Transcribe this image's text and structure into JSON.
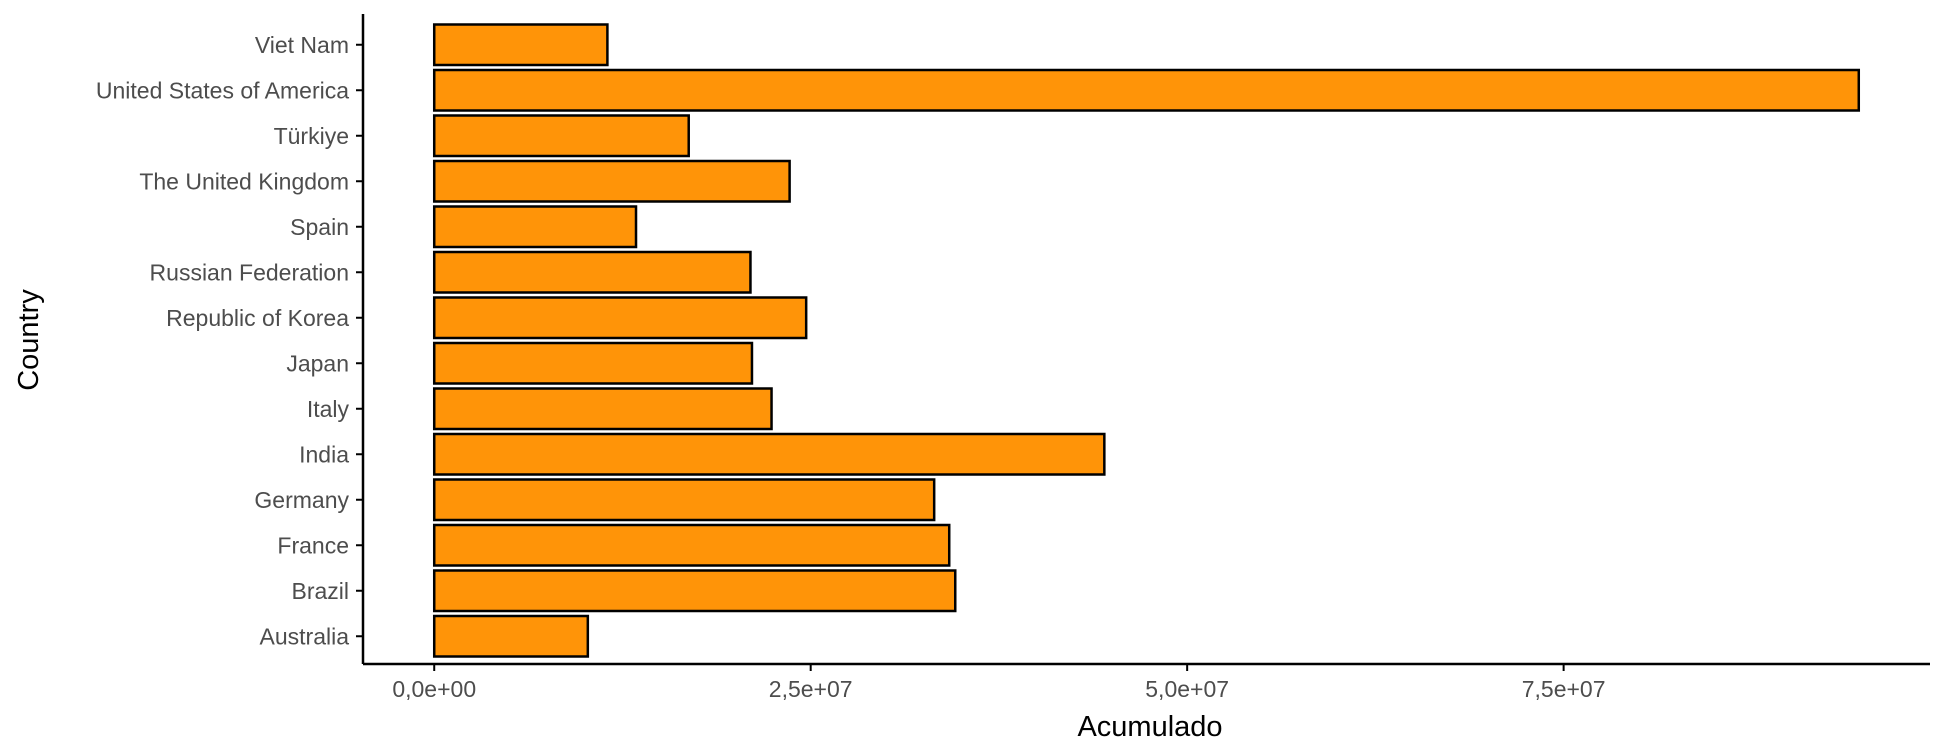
{
  "chart_data": {
    "type": "bar",
    "orientation": "horizontal",
    "categories": [
      "Australia",
      "Brazil",
      "France",
      "Germany",
      "India",
      "Italy",
      "Japan",
      "Republic of Korea",
      "Russian Federation",
      "Spain",
      "The United Kingdom",
      "Türkiye",
      "United States of America",
      "Viet Nam"
    ],
    "values": [
      10200000,
      34600000,
      34200000,
      33200000,
      44500000,
      22400000,
      21100000,
      24700000,
      21000000,
      13400000,
      23600000,
      16900000,
      94600000,
      11500000
    ],
    "xlabel": "Acumulado",
    "ylabel": "Country",
    "x_ticks": [
      0,
      25000000,
      50000000,
      75000000
    ],
    "x_tick_labels": [
      "0,0e+00",
      "2,5e+07",
      "5,0e+07",
      "7,5e+07"
    ],
    "xlim": [
      -4730000,
      99330000
    ],
    "grid": false,
    "legend": "none",
    "colors": {
      "bar_fill": "#FF9408",
      "bar_stroke": "#000000",
      "axis": "#000000",
      "tick_text": "#4D4D4D"
    }
  }
}
